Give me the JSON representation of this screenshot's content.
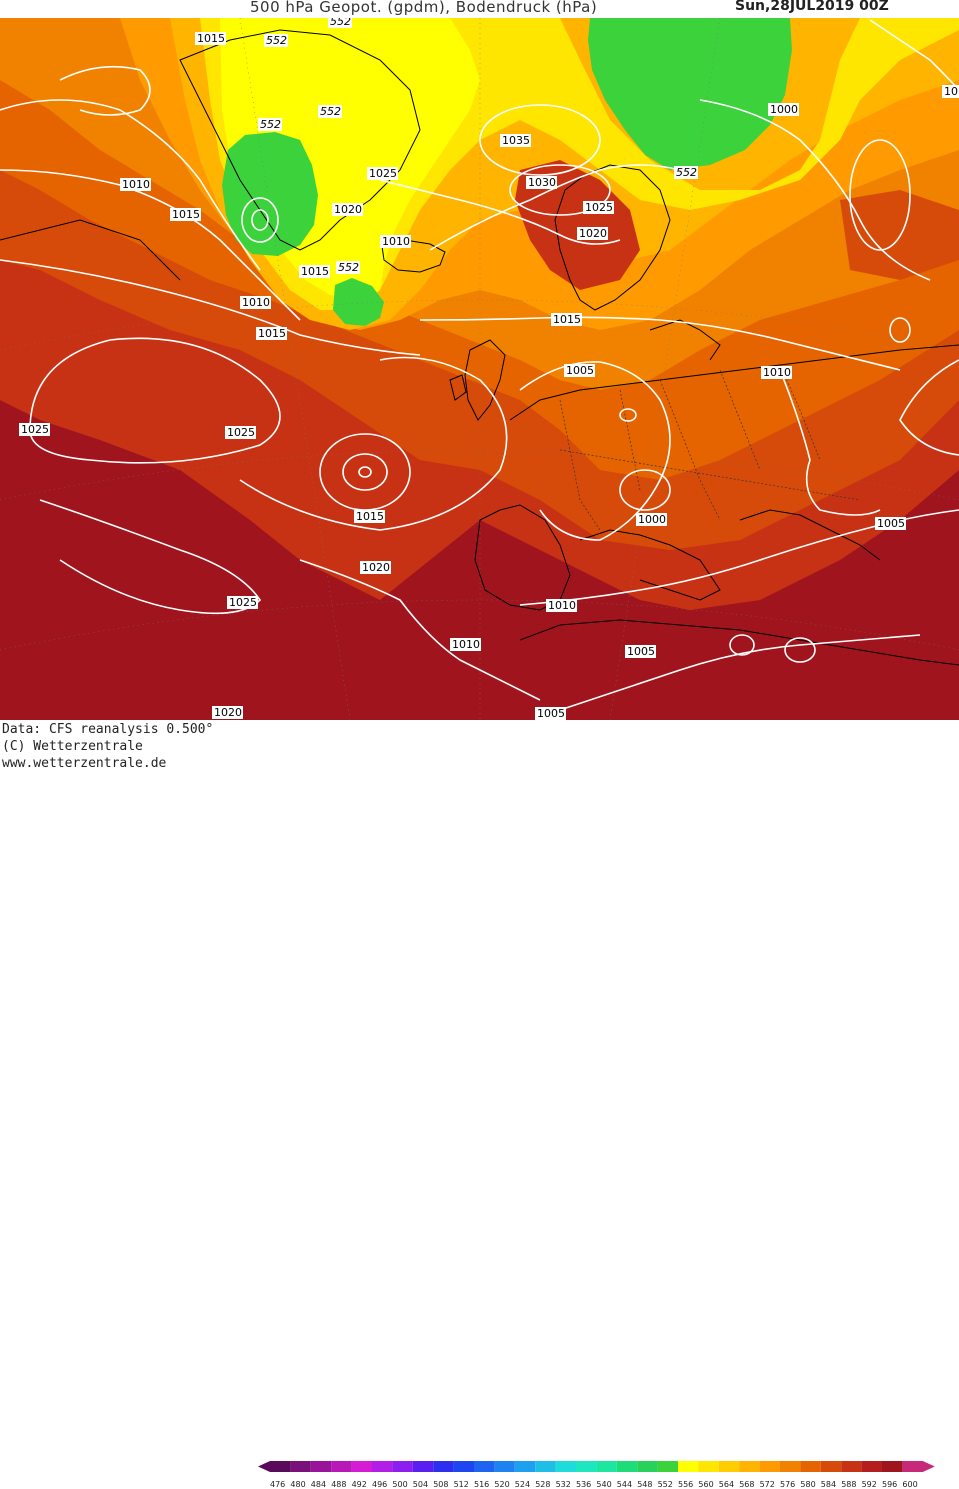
{
  "header": {
    "title": "500 hPa Geopot. (gpdm), Bodendruck (hPa)",
    "date": "Sun,28JUL2019  00Z"
  },
  "footer": {
    "line1": "Data: CFS reanalysis 0.500°",
    "line2": "(C) Wetterzentrale",
    "line3": "www.wetterzentrale.de"
  },
  "legend": {
    "values": [
      "476",
      "480",
      "484",
      "488",
      "492",
      "496",
      "500",
      "504",
      "508",
      "512",
      "516",
      "520",
      "524",
      "528",
      "532",
      "536",
      "540",
      "544",
      "548",
      "552",
      "556",
      "560",
      "564",
      "568",
      "572",
      "576",
      "580",
      "584",
      "588",
      "592",
      "596",
      "600"
    ],
    "colors": [
      "#5a0a5a",
      "#7a107a",
      "#9a149a",
      "#b818b8",
      "#d41cd4",
      "#b21ee6",
      "#8c1ef0",
      "#5a1ef0",
      "#2e2ef0",
      "#1e46f0",
      "#1e64f0",
      "#1e82f0",
      "#1ea0f0",
      "#1ebee6",
      "#1edcdc",
      "#1ee6be",
      "#1ee6a0",
      "#1edc78",
      "#28d25a",
      "#3cd23c",
      "#ffff00",
      "#ffe600",
      "#ffcd00",
      "#ffb400",
      "#ff9b00",
      "#f08200",
      "#e66400",
      "#d74b0a",
      "#c83214",
      "#b41e1e",
      "#a0141e",
      "#c8287a"
    ]
  },
  "map": {
    "geopotential_labels": [
      {
        "text": "552"
      },
      {
        "text": "552"
      },
      {
        "text": "552"
      },
      {
        "text": "552"
      },
      {
        "text": "552"
      },
      {
        "text": "552"
      }
    ],
    "pressure_labels": [
      {
        "text": "1015"
      },
      {
        "text": "1010"
      },
      {
        "text": "1015"
      },
      {
        "text": "1010"
      },
      {
        "text": "1015"
      },
      {
        "text": "1025"
      },
      {
        "text": "1025"
      },
      {
        "text": "1015"
      },
      {
        "text": "1020"
      },
      {
        "text": "1025"
      },
      {
        "text": "1020"
      },
      {
        "text": "1010"
      },
      {
        "text": "1015"
      },
      {
        "text": "1025"
      },
      {
        "text": "1030"
      },
      {
        "text": "1035"
      },
      {
        "text": "1025"
      },
      {
        "text": "1020"
      },
      {
        "text": "1015"
      },
      {
        "text": "1005"
      },
      {
        "text": "1010"
      },
      {
        "text": "1000"
      },
      {
        "text": "1000"
      },
      {
        "text": "1010"
      },
      {
        "text": "1005"
      },
      {
        "text": "1005"
      },
      {
        "text": "1020"
      },
      {
        "text": "1005"
      },
      {
        "text": "1010"
      },
      {
        "text": "1015"
      },
      {
        "text": "10"
      }
    ]
  }
}
